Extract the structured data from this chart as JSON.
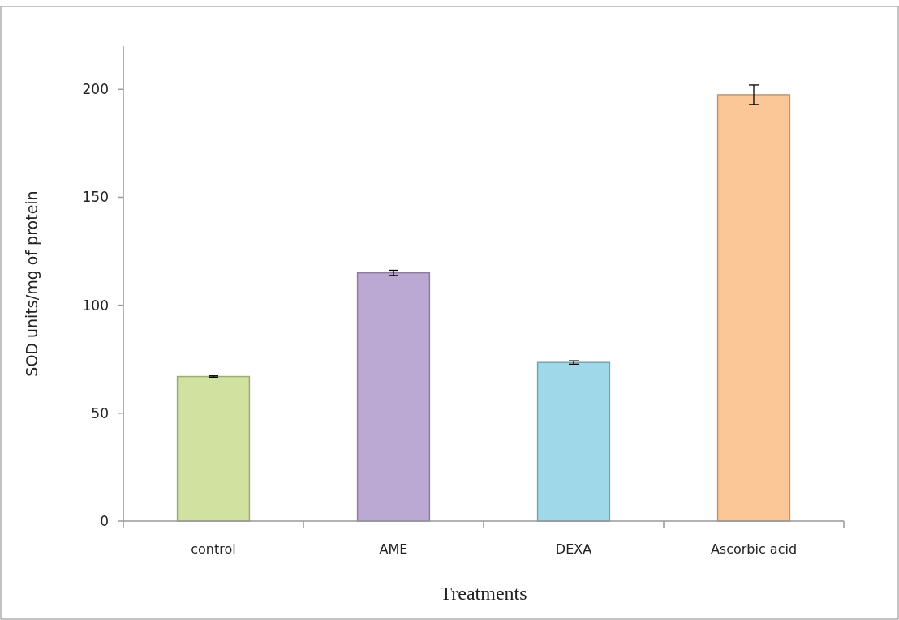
{
  "chart_data": {
    "type": "bar",
    "xlabel": "Treatments",
    "ylabel": "SOD units/mg of protein",
    "categories": [
      "control",
      "AME",
      "DEXA",
      "Ascorbic acid"
    ],
    "values": [
      67,
      115,
      73.5,
      197.5
    ],
    "colors": [
      "#d1e2a0",
      "#bba8d3",
      "#9fd9e9",
      "#fcc796"
    ],
    "errors": [
      0.3,
      1.2,
      0.8,
      4.5
    ],
    "ylim": [
      0,
      220
    ],
    "yticks": [
      0,
      50,
      100,
      150,
      200
    ],
    "grid": false
  }
}
